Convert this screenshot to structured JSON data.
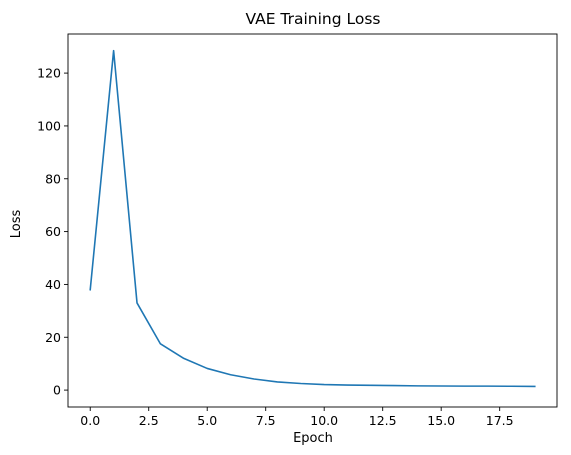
{
  "chart_data": {
    "type": "line",
    "title": "VAE Training Loss",
    "xlabel": "Epoch",
    "ylabel": "Loss",
    "xlim": [
      -0.95,
      19.95
    ],
    "ylim": [
      -6.4,
      134.8
    ],
    "xticks": [
      0.0,
      2.5,
      5.0,
      7.5,
      10.0,
      12.5,
      15.0,
      17.5
    ],
    "xtick_labels": [
      "0.0",
      "2.5",
      "5.0",
      "7.5",
      "10.0",
      "12.5",
      "15.0",
      "17.5"
    ],
    "yticks": [
      0,
      20,
      40,
      60,
      80,
      100,
      120
    ],
    "ytick_labels": [
      "0",
      "20",
      "40",
      "60",
      "80",
      "100",
      "120"
    ],
    "grid": false,
    "line_color": "#1f77b4",
    "series": [
      {
        "x": [
          0,
          1,
          2,
          3,
          4,
          5,
          6,
          7,
          8,
          9,
          10,
          11,
          12,
          13,
          14,
          15,
          16,
          17,
          18,
          19
        ],
        "values": [
          38.0,
          128.5,
          33.0,
          17.5,
          12.0,
          8.2,
          5.8,
          4.2,
          3.1,
          2.5,
          2.1,
          1.9,
          1.8,
          1.7,
          1.6,
          1.55,
          1.5,
          1.5,
          1.45,
          1.4
        ]
      }
    ]
  }
}
